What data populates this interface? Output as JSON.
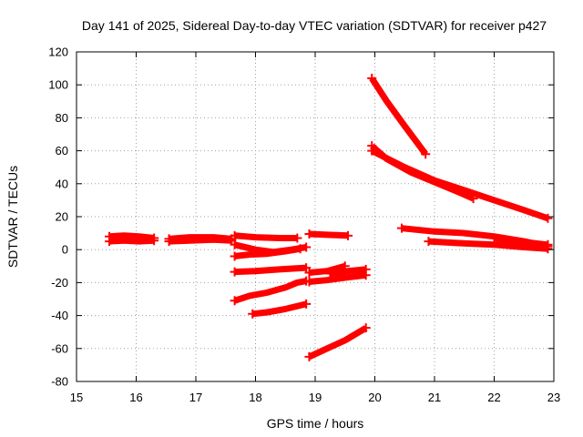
{
  "chart_data": {
    "type": "scatter",
    "title": "Day 141 of 2025, Sidereal Day-to-day VTEC variation (SDTVAR) for receiver p427",
    "xlabel": "GPS time / hours",
    "ylabel": "SDTVAR / TECUs",
    "xlim": [
      15,
      23
    ],
    "ylim": [
      -80,
      120
    ],
    "xticks": [
      15,
      16,
      17,
      18,
      19,
      20,
      21,
      22,
      23
    ],
    "yticks": [
      -80,
      -60,
      -40,
      -20,
      0,
      20,
      40,
      60,
      80,
      100,
      120
    ],
    "grid": true,
    "color": "#ff0000",
    "series": [
      {
        "name": "s1",
        "x": [
          15.55,
          15.8,
          16.05,
          16.3
        ],
        "y": [
          8,
          8.5,
          8,
          7
        ]
      },
      {
        "name": "s2",
        "x": [
          15.55,
          15.8,
          16.05,
          16.3
        ],
        "y": [
          5,
          5.5,
          5,
          5.5
        ]
      },
      {
        "name": "s3",
        "x": [
          16.55,
          16.9,
          17.3,
          17.6
        ],
        "y": [
          6.5,
          7.5,
          7.5,
          6.5
        ]
      },
      {
        "name": "s4",
        "x": [
          16.55,
          16.9,
          17.3,
          17.6
        ],
        "y": [
          5,
          5.5,
          6,
          5.5
        ]
      },
      {
        "name": "s5",
        "x": [
          17.65,
          18.0,
          18.4,
          18.7
        ],
        "y": [
          8.5,
          7.5,
          7,
          7
        ]
      },
      {
        "name": "s6",
        "x": [
          17.65,
          18.0,
          18.3,
          18.6,
          18.85
        ],
        "y": [
          3,
          0,
          -1.5,
          0,
          1.5
        ]
      },
      {
        "name": "s7",
        "x": [
          17.65,
          17.9,
          18.2,
          18.5,
          18.75
        ],
        "y": [
          -4,
          -3,
          -2.5,
          -1,
          0.5
        ]
      },
      {
        "name": "s8",
        "x": [
          17.65,
          18.0,
          18.4,
          18.85
        ],
        "y": [
          -13.5,
          -13,
          -12,
          -11
        ]
      },
      {
        "name": "s9",
        "x": [
          17.65,
          17.9,
          18.2,
          18.5,
          18.7,
          18.85
        ],
        "y": [
          -31,
          -28,
          -26,
          -23,
          -20,
          -19
        ]
      },
      {
        "name": "s10",
        "x": [
          17.95,
          18.2,
          18.5,
          18.85
        ],
        "y": [
          -39,
          -38,
          -36,
          -33
        ]
      },
      {
        "name": "s11",
        "x": [
          18.9,
          19.2,
          19.55
        ],
        "y": [
          9.5,
          9,
          8.5
        ]
      },
      {
        "name": "s12",
        "x": [
          18.9,
          19.2,
          19.5
        ],
        "y": [
          -14,
          -13,
          -10
        ]
      },
      {
        "name": "s13",
        "x": [
          18.9,
          19.2,
          19.5,
          19.85
        ],
        "y": [
          -19.5,
          -18.5,
          -17,
          -15.5
        ]
      },
      {
        "name": "s14",
        "x": [
          19.25,
          19.55,
          19.85
        ],
        "y": [
          -14.5,
          -13,
          -12
        ]
      },
      {
        "name": "s15",
        "x": [
          18.9,
          19.2,
          19.5,
          19.85
        ],
        "y": [
          -65,
          -60,
          -55,
          -47.5
        ]
      },
      {
        "name": "s16",
        "x": [
          19.95,
          20.2,
          20.5,
          20.85
        ],
        "y": [
          104,
          90,
          75,
          58
        ]
      },
      {
        "name": "s17",
        "x": [
          19.95,
          20.2,
          20.6,
          21.0,
          21.4,
          21.65
        ],
        "y": [
          63,
          55,
          47,
          41,
          35,
          31
        ]
      },
      {
        "name": "s18",
        "x": [
          19.95,
          20.5,
          21.0,
          21.5,
          22.0,
          22.5,
          22.9
        ],
        "y": [
          60,
          50,
          42,
          36,
          30,
          24,
          19
        ]
      },
      {
        "name": "s19",
        "x": [
          20.45,
          21.0,
          21.5,
          22.0,
          22.5,
          22.9
        ],
        "y": [
          13,
          11,
          10,
          8,
          5,
          2
        ]
      },
      {
        "name": "s20",
        "x": [
          20.9,
          21.4,
          22.0,
          22.5,
          22.9
        ],
        "y": [
          5,
          4,
          3,
          1.5,
          0.5
        ]
      },
      {
        "name": "s21",
        "x": [
          22.0,
          22.4,
          22.9
        ],
        "y": [
          7,
          5,
          3
        ]
      }
    ]
  }
}
